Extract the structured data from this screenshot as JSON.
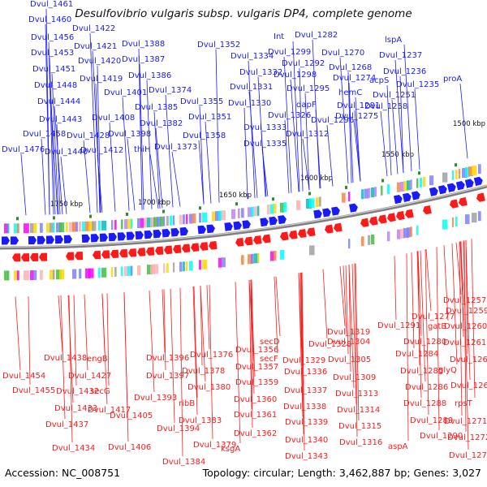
{
  "title": "Desulfovibrio vulgaris subsp. vulgaris DP4, complete genome",
  "footer": {
    "accession": "Accession: NC_008751",
    "summary": "Topology: circular; Length: 3,462,887 bp; Genes: 3,027"
  },
  "colors": {
    "forward_strand": "#1a1aff",
    "reverse_strand": "#ff1a1a",
    "backbone": "#7f7f7f"
  },
  "scale_labels": [
    "1500 kbp",
    "1550 kbp",
    "1600 kbp",
    "1650 kbp",
    "1700 kbp",
    "1750 kbp"
  ],
  "forward_genes": [
    "Dvul_1461",
    "Dvul_1460",
    "Dvul_1456",
    "Dvul_1453",
    "Dvul_1451",
    "Dvul_1448",
    "Dvul_1444",
    "Dvul_1443",
    "Dvul_1458",
    "Dvul_1476",
    "Dvul_1440",
    "Dvul_1428",
    "Dvul_1422",
    "Dvul_1421",
    "Dvul_1420",
    "Dvul_1419",
    "Dvul_1412",
    "Dvul_1408",
    "Dvul_1401",
    "Dvul_1398",
    "thiH",
    "Dvul_1388",
    "Dvul_1387",
    "Dvul_1386",
    "Dvul_1385",
    "Dvul_1382",
    "Dvul_1374",
    "Dvul_1373",
    "Dvul_1352",
    "Dvul_1355",
    "Dvul_1358",
    "Dvul_1351",
    "Dvul_1334",
    "Dvul_1332",
    "Dvul_1331",
    "Dvul_1330",
    "Dvul_1326",
    "Dvul_1333",
    "Dvul_1335",
    "Int",
    "Dvul_1299",
    "Dvul_1298",
    "Dvul_1292",
    "Dvul_1295",
    "dapF",
    "Dvul_1296",
    "Dvul_1312",
    "Dvul_1282",
    "Dvul_1270",
    "Dvul_1268",
    "Dvul_1274",
    "hemC",
    "Dvul_1281",
    "Dvul_1275",
    "lspA",
    "Dvul_1237",
    "Dvul_1236",
    "acpS",
    "Dvul_1235",
    "Dvul_1251",
    "Dvul_1258",
    "proA"
  ],
  "reverse_genes": [
    "Dvul_1454",
    "Dvul_1438",
    "Dvul_1427",
    "Dvul_1432",
    "Dvul_1455",
    "Dvul_1433",
    "Dvul_1437",
    "Dvul_1434",
    "engB",
    "secG",
    "Dvul_1417",
    "Dvul_1406",
    "Dvul_1405",
    "Dvul_1396",
    "Dvul_1397",
    "Dvul_1393",
    "Dvul_1394",
    "ribB",
    "Dvul_1376",
    "Dvul_1378",
    "Dvul_1380",
    "Dvul_1383",
    "Dvul_1379",
    "Dvul_1384",
    "Dvul_1356",
    "Dvul_1357",
    "Dvul_1359",
    "Dvul_1360",
    "Dvul_1361",
    "Dvul_1362",
    "ksgA",
    "secD",
    "secF",
    "Dvul_1336",
    "Dvul_1337",
    "Dvul_1338",
    "Dvul_1339",
    "Dvul_1340",
    "Dvul_1343",
    "Dvul_1329",
    "Dvul_1319",
    "Dvul_1328",
    "Dvul_1304",
    "Dvul_1305",
    "Dvul_1309",
    "Dvul_1313",
    "Dvul_1314",
    "Dvul_1315",
    "Dvul_1316",
    "Dvul_1291",
    "Dvul_1277",
    "gatB",
    "Dvul_1280",
    "Dvul_1284",
    "Dvul_1285",
    "Dvul_1286",
    "Dvul_1288",
    "Dvul_1289",
    "Dvul_1290",
    "aspA",
    "Dvul_1257",
    "Dvul_1259",
    "Dvul_1260",
    "Dvul_1261",
    "Dvul_1262",
    "glyQ",
    "Dvul_1266",
    "rpsT",
    "Dvul_1271",
    "Dvul_1272",
    "Dvul_1276"
  ]
}
